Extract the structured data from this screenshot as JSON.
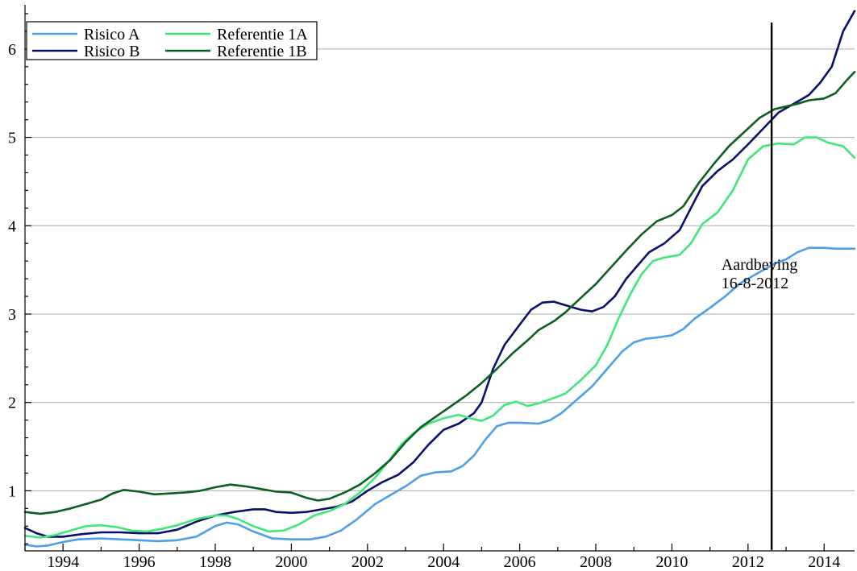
{
  "chart_data": {
    "type": "line",
    "title": "",
    "xlabel": "",
    "ylabel": "",
    "xlim": [
      1993.0,
      2014.8
    ],
    "ylim": [
      0.32,
      6.5
    ],
    "xticks": [
      1994,
      1996,
      1998,
      2000,
      2002,
      2004,
      2006,
      2008,
      2010,
      2012,
      2014
    ],
    "xtick_labels": [
      "1994",
      "1996",
      "1998",
      "2000",
      "2002",
      "2004",
      "2006",
      "2008",
      "2010",
      "2012",
      "2014"
    ],
    "yticks": [
      1,
      2,
      3,
      4,
      5,
      6
    ],
    "ytick_labels": [
      "1",
      "2",
      "3",
      "4",
      "5",
      "6"
    ],
    "grid": "horizontal",
    "legend_position": "top-left",
    "vline": {
      "x": 2012.62,
      "y_range": [
        0.33,
        6.3
      ]
    },
    "annotation": {
      "lines": [
        "Aardbeving",
        "16-8-2012"
      ],
      "x": 2011.3,
      "y": 3.5
    },
    "series": [
      {
        "name": "Risico A",
        "color": "#4d9fea",
        "points": [
          [
            1993.0,
            0.39
          ],
          [
            1993.3,
            0.37
          ],
          [
            1993.6,
            0.38
          ],
          [
            1994.0,
            0.42
          ],
          [
            1994.4,
            0.45
          ],
          [
            1995.0,
            0.46
          ],
          [
            1995.5,
            0.45
          ],
          [
            1996.0,
            0.44
          ],
          [
            1996.5,
            0.43
          ],
          [
            1997.0,
            0.44
          ],
          [
            1997.5,
            0.48
          ],
          [
            1998.0,
            0.6
          ],
          [
            1998.3,
            0.64
          ],
          [
            1998.6,
            0.62
          ],
          [
            1999.0,
            0.54
          ],
          [
            1999.5,
            0.46
          ],
          [
            2000.0,
            0.45
          ],
          [
            2000.5,
            0.45
          ],
          [
            2000.9,
            0.48
          ],
          [
            2001.3,
            0.55
          ],
          [
            2001.7,
            0.67
          ],
          [
            2002.2,
            0.85
          ],
          [
            2002.6,
            0.95
          ],
          [
            2003.0,
            1.05
          ],
          [
            2003.4,
            1.17
          ],
          [
            2003.8,
            1.21
          ],
          [
            2004.2,
            1.22
          ],
          [
            2004.5,
            1.28
          ],
          [
            2004.8,
            1.4
          ],
          [
            2005.1,
            1.58
          ],
          [
            2005.4,
            1.73
          ],
          [
            2005.7,
            1.77
          ],
          [
            2006.0,
            1.77
          ],
          [
            2006.5,
            1.76
          ],
          [
            2006.8,
            1.8
          ],
          [
            2007.1,
            1.88
          ],
          [
            2007.5,
            2.03
          ],
          [
            2007.9,
            2.18
          ],
          [
            2008.3,
            2.38
          ],
          [
            2008.7,
            2.58
          ],
          [
            2009.0,
            2.68
          ],
          [
            2009.3,
            2.72
          ],
          [
            2009.7,
            2.74
          ],
          [
            2010.0,
            2.76
          ],
          [
            2010.3,
            2.83
          ],
          [
            2010.6,
            2.95
          ],
          [
            2011.0,
            3.07
          ],
          [
            2011.4,
            3.2
          ],
          [
            2011.8,
            3.35
          ],
          [
            2012.2,
            3.45
          ],
          [
            2012.7,
            3.57
          ],
          [
            2013.0,
            3.62
          ],
          [
            2013.3,
            3.7
          ],
          [
            2013.6,
            3.75
          ],
          [
            2014.0,
            3.75
          ],
          [
            2014.3,
            3.74
          ],
          [
            2014.8,
            3.74
          ]
        ]
      },
      {
        "name": "Risico B",
        "color": "#0a0f6e",
        "points": [
          [
            1993.0,
            0.58
          ],
          [
            1993.3,
            0.52
          ],
          [
            1993.6,
            0.48
          ],
          [
            1994.0,
            0.48
          ],
          [
            1994.5,
            0.51
          ],
          [
            1995.0,
            0.53
          ],
          [
            1995.5,
            0.53
          ],
          [
            1996.0,
            0.52
          ],
          [
            1996.5,
            0.52
          ],
          [
            1997.0,
            0.56
          ],
          [
            1997.5,
            0.65
          ],
          [
            1998.0,
            0.72
          ],
          [
            1998.5,
            0.76
          ],
          [
            1999.0,
            0.79
          ],
          [
            1999.3,
            0.79
          ],
          [
            1999.6,
            0.76
          ],
          [
            2000.0,
            0.75
          ],
          [
            2000.4,
            0.76
          ],
          [
            2000.8,
            0.79
          ],
          [
            2001.2,
            0.82
          ],
          [
            2001.6,
            0.88
          ],
          [
            2002.0,
            1.0
          ],
          [
            2002.4,
            1.1
          ],
          [
            2002.8,
            1.18
          ],
          [
            2003.2,
            1.32
          ],
          [
            2003.6,
            1.52
          ],
          [
            2004.0,
            1.69
          ],
          [
            2004.4,
            1.76
          ],
          [
            2004.8,
            1.88
          ],
          [
            2005.0,
            2.0
          ],
          [
            2005.3,
            2.38
          ],
          [
            2005.6,
            2.65
          ],
          [
            2006.0,
            2.88
          ],
          [
            2006.3,
            3.05
          ],
          [
            2006.6,
            3.13
          ],
          [
            2006.9,
            3.14
          ],
          [
            2007.2,
            3.1
          ],
          [
            2007.6,
            3.05
          ],
          [
            2007.9,
            3.03
          ],
          [
            2008.2,
            3.08
          ],
          [
            2008.5,
            3.2
          ],
          [
            2008.8,
            3.4
          ],
          [
            2009.1,
            3.55
          ],
          [
            2009.4,
            3.7
          ],
          [
            2009.8,
            3.8
          ],
          [
            2010.2,
            3.95
          ],
          [
            2010.5,
            4.2
          ],
          [
            2010.8,
            4.45
          ],
          [
            2011.2,
            4.62
          ],
          [
            2011.6,
            4.75
          ],
          [
            2012.0,
            4.92
          ],
          [
            2012.4,
            5.1
          ],
          [
            2012.8,
            5.28
          ],
          [
            2013.2,
            5.38
          ],
          [
            2013.6,
            5.48
          ],
          [
            2013.9,
            5.62
          ],
          [
            2014.2,
            5.8
          ],
          [
            2014.5,
            6.2
          ],
          [
            2014.8,
            6.43
          ]
        ]
      },
      {
        "name": "Referentie 1A",
        "color": "#3ee878",
        "points": [
          [
            1993.0,
            0.49
          ],
          [
            1993.4,
            0.47
          ],
          [
            1993.8,
            0.5
          ],
          [
            1994.2,
            0.55
          ],
          [
            1994.6,
            0.6
          ],
          [
            1995.0,
            0.61
          ],
          [
            1995.4,
            0.59
          ],
          [
            1995.8,
            0.55
          ],
          [
            1996.2,
            0.54
          ],
          [
            1996.6,
            0.57
          ],
          [
            1997.0,
            0.61
          ],
          [
            1997.5,
            0.68
          ],
          [
            1998.0,
            0.72
          ],
          [
            1998.3,
            0.72
          ],
          [
            1998.6,
            0.68
          ],
          [
            1999.0,
            0.6
          ],
          [
            1999.4,
            0.54
          ],
          [
            1999.8,
            0.55
          ],
          [
            2000.2,
            0.62
          ],
          [
            2000.6,
            0.72
          ],
          [
            2001.0,
            0.77
          ],
          [
            2001.4,
            0.85
          ],
          [
            2001.8,
            0.98
          ],
          [
            2002.2,
            1.15
          ],
          [
            2002.6,
            1.36
          ],
          [
            2002.9,
            1.53
          ],
          [
            2003.2,
            1.65
          ],
          [
            2003.6,
            1.76
          ],
          [
            2004.0,
            1.82
          ],
          [
            2004.4,
            1.86
          ],
          [
            2004.7,
            1.82
          ],
          [
            2005.0,
            1.79
          ],
          [
            2005.3,
            1.85
          ],
          [
            2005.6,
            1.97
          ],
          [
            2005.9,
            2.01
          ],
          [
            2006.2,
            1.96
          ],
          [
            2006.5,
            1.99
          ],
          [
            2006.9,
            2.05
          ],
          [
            2007.2,
            2.1
          ],
          [
            2007.6,
            2.25
          ],
          [
            2008.0,
            2.42
          ],
          [
            2008.3,
            2.65
          ],
          [
            2008.6,
            2.95
          ],
          [
            2008.9,
            3.22
          ],
          [
            2009.2,
            3.45
          ],
          [
            2009.5,
            3.6
          ],
          [
            2009.8,
            3.64
          ],
          [
            2010.2,
            3.67
          ],
          [
            2010.5,
            3.8
          ],
          [
            2010.8,
            4.02
          ],
          [
            2011.2,
            4.15
          ],
          [
            2011.6,
            4.4
          ],
          [
            2012.0,
            4.75
          ],
          [
            2012.4,
            4.9
          ],
          [
            2012.8,
            4.93
          ],
          [
            2013.2,
            4.92
          ],
          [
            2013.5,
            5.0
          ],
          [
            2013.8,
            5.0
          ],
          [
            2014.1,
            4.94
          ],
          [
            2014.5,
            4.9
          ],
          [
            2014.8,
            4.77
          ]
        ]
      },
      {
        "name": "Referentie 1B",
        "color": "#0b5f1f",
        "points": [
          [
            1993.0,
            0.76
          ],
          [
            1993.4,
            0.74
          ],
          [
            1993.8,
            0.76
          ],
          [
            1994.2,
            0.8
          ],
          [
            1994.6,
            0.85
          ],
          [
            1995.0,
            0.9
          ],
          [
            1995.3,
            0.97
          ],
          [
            1995.6,
            1.01
          ],
          [
            1996.0,
            0.99
          ],
          [
            1996.4,
            0.96
          ],
          [
            1996.8,
            0.97
          ],
          [
            1997.2,
            0.98
          ],
          [
            1997.6,
            1.0
          ],
          [
            1998.0,
            1.04
          ],
          [
            1998.4,
            1.07
          ],
          [
            1998.8,
            1.05
          ],
          [
            1999.2,
            1.02
          ],
          [
            1999.6,
            0.99
          ],
          [
            2000.0,
            0.98
          ],
          [
            2000.4,
            0.92
          ],
          [
            2000.7,
            0.89
          ],
          [
            2001.0,
            0.91
          ],
          [
            2001.4,
            0.98
          ],
          [
            2001.8,
            1.07
          ],
          [
            2002.2,
            1.2
          ],
          [
            2002.6,
            1.35
          ],
          [
            2003.0,
            1.55
          ],
          [
            2003.4,
            1.72
          ],
          [
            2003.8,
            1.84
          ],
          [
            2004.2,
            1.96
          ],
          [
            2004.6,
            2.08
          ],
          [
            2005.0,
            2.22
          ],
          [
            2005.4,
            2.38
          ],
          [
            2005.8,
            2.55
          ],
          [
            2006.2,
            2.7
          ],
          [
            2006.5,
            2.82
          ],
          [
            2006.9,
            2.92
          ],
          [
            2007.2,
            3.02
          ],
          [
            2007.6,
            3.18
          ],
          [
            2008.0,
            3.34
          ],
          [
            2008.4,
            3.53
          ],
          [
            2008.8,
            3.72
          ],
          [
            2009.2,
            3.9
          ],
          [
            2009.6,
            4.05
          ],
          [
            2010.0,
            4.12
          ],
          [
            2010.3,
            4.22
          ],
          [
            2010.7,
            4.48
          ],
          [
            2011.1,
            4.7
          ],
          [
            2011.5,
            4.9
          ],
          [
            2011.9,
            5.06
          ],
          [
            2012.3,
            5.22
          ],
          [
            2012.7,
            5.32
          ],
          [
            2013.0,
            5.35
          ],
          [
            2013.3,
            5.38
          ],
          [
            2013.6,
            5.42
          ],
          [
            2014.0,
            5.44
          ],
          [
            2014.3,
            5.5
          ],
          [
            2014.6,
            5.65
          ],
          [
            2014.8,
            5.74
          ]
        ]
      }
    ]
  }
}
